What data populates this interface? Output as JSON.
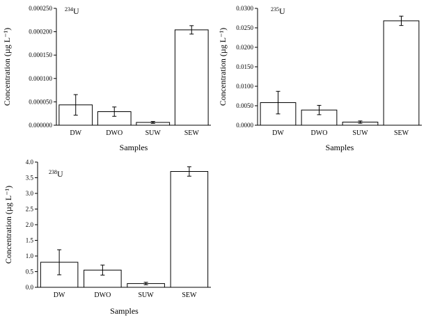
{
  "chart_data": [
    {
      "type": "bar",
      "annotation_superscript": "234",
      "annotation_main": "U",
      "categories": [
        "DW",
        "DWO",
        "SUW",
        "SEW"
      ],
      "values": [
        4.35e-05,
        2.9e-05,
        6e-06,
        0.000204
      ],
      "errors": [
        2.2e-05,
        1e-05,
        2e-06,
        9e-06
      ],
      "ylim": [
        0,
        0.00025
      ],
      "yticks": [
        "0.000000",
        "0.000050",
        "0.000100",
        "0.000150",
        "0.000200",
        "0.000250"
      ],
      "ytick_values": [
        0,
        5e-05,
        0.0001,
        0.00015,
        0.0002,
        0.00025
      ],
      "xlabel": "Samples",
      "ylabel": "Concentration (µg L⁻¹)",
      "bar_color": "#ffffff",
      "edge_color": "#000000"
    },
    {
      "type": "bar",
      "annotation_superscript": "235",
      "annotation_main": "U",
      "categories": [
        "DW",
        "DWO",
        "SUW",
        "SEW"
      ],
      "values": [
        0.0058,
        0.0039,
        0.0008,
        0.0268
      ],
      "errors": [
        0.0029,
        0.0012,
        0.0003,
        0.0012
      ],
      "ylim": [
        0,
        0.03
      ],
      "yticks": [
        "0.0000",
        "0.0050",
        "0.0100",
        "0.0150",
        "0.0200",
        "0.0250",
        "0.0300"
      ],
      "ytick_values": [
        0,
        0.005,
        0.01,
        0.015,
        0.02,
        0.025,
        0.03
      ],
      "xlabel": "Samples",
      "ylabel": "Concentration (µg L⁻¹)",
      "bar_color": "#ffffff",
      "edge_color": "#000000"
    },
    {
      "type": "bar",
      "annotation_superscript": "238",
      "annotation_main": "U",
      "categories": [
        "DW",
        "DWO",
        "SUW",
        "SEW"
      ],
      "values": [
        0.8,
        0.55,
        0.12,
        3.7
      ],
      "errors": [
        0.4,
        0.16,
        0.04,
        0.15
      ],
      "ylim": [
        0,
        4.0
      ],
      "yticks": [
        "0.0",
        "0.5",
        "1.0",
        "1.5",
        "2.0",
        "2.5",
        "3.0",
        "3.5",
        "4.0"
      ],
      "ytick_values": [
        0,
        0.5,
        1.0,
        1.5,
        2.0,
        2.5,
        3.0,
        3.5,
        4.0
      ],
      "xlabel": "Samples",
      "ylabel": "Concentration (µg L⁻¹)",
      "bar_color": "#ffffff",
      "edge_color": "#000000"
    }
  ]
}
